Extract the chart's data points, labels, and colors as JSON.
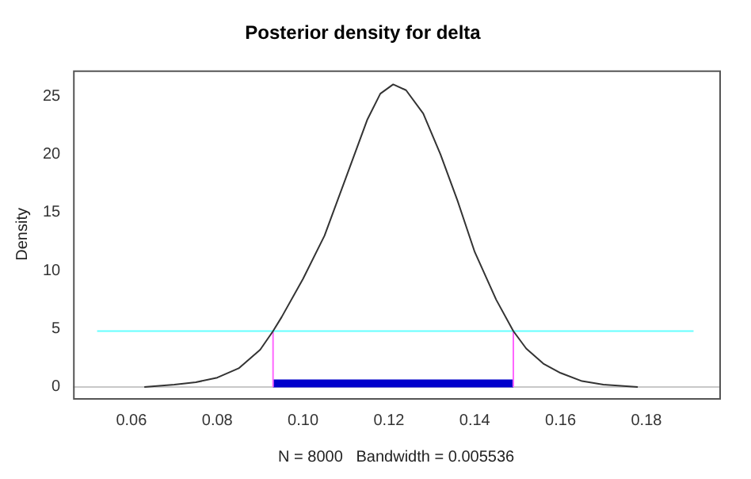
{
  "chart_data": {
    "type": "line",
    "title": "Posterior density for delta",
    "xlabel": "N = 8000   Bandwidth = 0.005536",
    "ylabel": "Density",
    "xlim": [
      0.0464,
      0.197
    ],
    "ylim": [
      -0.96,
      27.2
    ],
    "xticks": [
      {
        "value": 0.06,
        "label": "0.06"
      },
      {
        "value": 0.08,
        "label": "0.08"
      },
      {
        "value": 0.1,
        "label": "0.10"
      },
      {
        "value": 0.12,
        "label": "0.12"
      },
      {
        "value": 0.14,
        "label": "0.14"
      },
      {
        "value": 0.16,
        "label": "0.16"
      },
      {
        "value": 0.18,
        "label": "0.18"
      }
    ],
    "yticks": [
      0,
      5,
      10,
      15,
      20,
      25
    ],
    "grid": false,
    "legend": false,
    "marker": "none",
    "line_style": "solid",
    "ref_lines": [
      {
        "axis": "y",
        "value": 0,
        "color": "#c8c8c8"
      }
    ],
    "series": [
      {
        "color": "#333333",
        "x": [
          0.063,
          0.07,
          0.075,
          0.08,
          0.085,
          0.09,
          0.093,
          0.095,
          0.1,
          0.105,
          0.11,
          0.115,
          0.118,
          0.121,
          0.124,
          0.128,
          0.132,
          0.136,
          0.14,
          0.145,
          0.149,
          0.152,
          0.156,
          0.16,
          0.165,
          0.17,
          0.178
        ],
        "values": [
          0,
          0.2,
          0.4,
          0.8,
          1.6,
          3.2,
          4.8,
          6.0,
          9.3,
          13.0,
          18.0,
          23.0,
          25.2,
          26.0,
          25.5,
          23.5,
          20.0,
          16.0,
          11.6,
          7.5,
          4.8,
          3.3,
          2.0,
          1.2,
          0.5,
          0.2,
          0
        ]
      },
      {
        "color": "#66ffff",
        "x": [
          0.052,
          0.191
        ],
        "values": [
          4.8,
          4.8
        ]
      },
      {
        "color": "#ff66ff",
        "x": [
          0.093,
          0.093
        ],
        "values": [
          0,
          4.8
        ]
      },
      {
        "color": "#ff66ff",
        "x": [
          0.149,
          0.149
        ],
        "values": [
          0,
          4.8
        ]
      },
      {
        "color": "#0000cc",
        "x": [
          0.093,
          0.149
        ],
        "values": [
          0.3,
          0.3
        ]
      }
    ]
  }
}
